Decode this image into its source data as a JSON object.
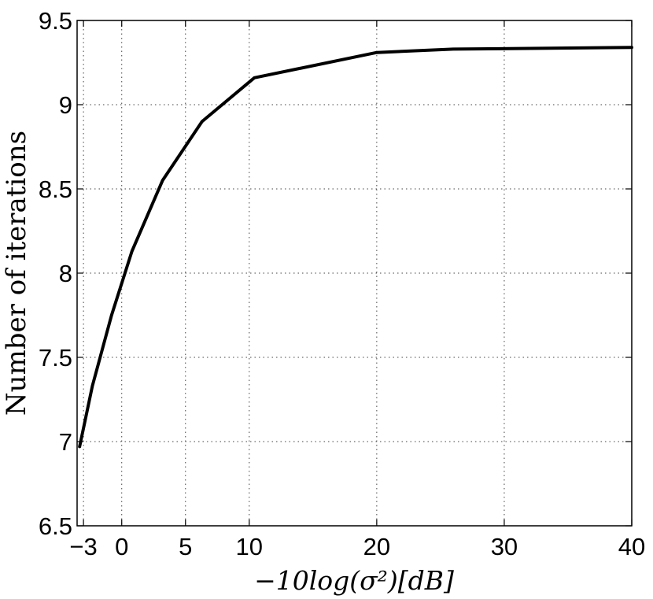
{
  "chart_data": {
    "type": "line",
    "title": "",
    "xlabel": "−10log(σ²)[dB]",
    "ylabel": "Number of iterations",
    "xlim": [
      -3.5,
      40
    ],
    "ylim": [
      6.5,
      9.5
    ],
    "grid": true,
    "x_ticks": [
      -3,
      0,
      5,
      10,
      20,
      30,
      40
    ],
    "x_tick_labels": [
      "−3",
      "0",
      "5",
      "10",
      "20",
      "30",
      "40"
    ],
    "y_ticks": [
      6.5,
      7,
      7.5,
      8,
      8.5,
      9,
      9.5
    ],
    "y_tick_labels": [
      "6.5",
      "7",
      "7.5",
      "8",
      "8.5",
      "9",
      "9.5"
    ],
    "series": [
      {
        "color": "#000000",
        "x": [
          -3.3,
          -2.3,
          -0.8,
          0.8,
          3.2,
          6.3,
          10.4,
          20,
          26,
          40
        ],
        "y": [
          6.97,
          7.33,
          7.75,
          8.13,
          8.55,
          8.9,
          9.16,
          9.31,
          9.33,
          9.34
        ]
      }
    ]
  }
}
